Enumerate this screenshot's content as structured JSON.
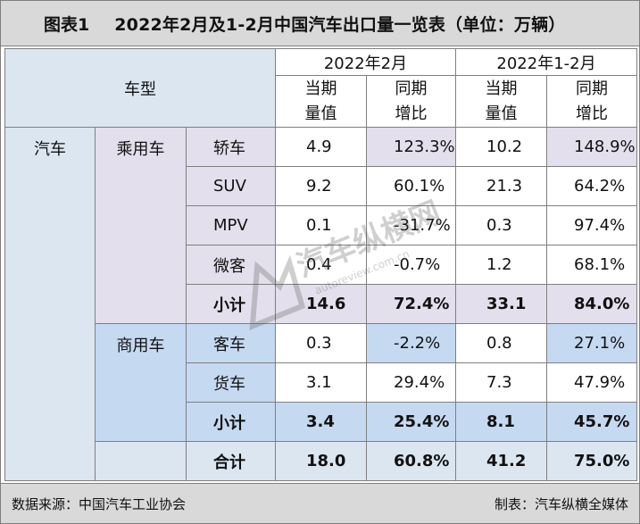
{
  "title": {
    "label": "图表1",
    "text": "2022年2月及1-2月中国汽车出口量一览表（单位：万辆）"
  },
  "header": {
    "vehicle_type": "车型",
    "period_feb": "2022年2月",
    "period_janfeb": "2022年1-2月",
    "col_value_l1": "当期",
    "col_value_l2": "量值",
    "col_yoy_l1": "同期",
    "col_yoy_l2": "增比"
  },
  "table": {
    "category": "汽车",
    "passenger": {
      "label": "乘用车",
      "rows": [
        {
          "name": "轿车",
          "feb_value": "4.9",
          "feb_yoy": "123.3%",
          "cum_value": "10.2",
          "cum_yoy": "148.9%"
        },
        {
          "name": "SUV",
          "feb_value": "9.2",
          "feb_yoy": "60.1%",
          "cum_value": "21.3",
          "cum_yoy": "64.2%"
        },
        {
          "name": "MPV",
          "feb_value": "0.1",
          "feb_yoy": "-31.7%",
          "cum_value": "0.3",
          "cum_yoy": "97.4%"
        },
        {
          "name": "微客",
          "feb_value": "0.4",
          "feb_yoy": "-0.7%",
          "cum_value": "1.2",
          "cum_yoy": "68.1%"
        }
      ],
      "subtotal": {
        "name": "小计",
        "feb_value": "14.6",
        "feb_yoy": "72.4%",
        "cum_value": "33.1",
        "cum_yoy": "84.0%"
      }
    },
    "commercial": {
      "label": "商用车",
      "rows": [
        {
          "name": "客车",
          "feb_value": "0.3",
          "feb_yoy": "-2.2%",
          "cum_value": "0.8",
          "cum_yoy": "27.1%"
        },
        {
          "name": "货车",
          "feb_value": "3.1",
          "feb_yoy": "29.4%",
          "cum_value": "7.3",
          "cum_yoy": "47.9%"
        }
      ],
      "subtotal": {
        "name": "小计",
        "feb_value": "3.4",
        "feb_yoy": "25.4%",
        "cum_value": "8.1",
        "cum_yoy": "45.7%"
      }
    },
    "total": {
      "name": "合计",
      "feb_value": "18.0",
      "feb_yoy": "60.8%",
      "cum_value": "41.2",
      "cum_yoy": "75.0%"
    }
  },
  "watermark": {
    "text_cn": "汽车纵横网",
    "text_url": "autoreview.com.cn"
  },
  "footer": {
    "source": "数据来源：中国汽车工业协会",
    "maker": "制表：汽车纵横全媒体"
  },
  "colors": {
    "title_bg": "#d9d9d9",
    "left_blue": "#dce6f1",
    "passenger_purple": "#e4dfec",
    "commercial_blue": "#c5d9f1",
    "border": "#7f7f7f"
  }
}
